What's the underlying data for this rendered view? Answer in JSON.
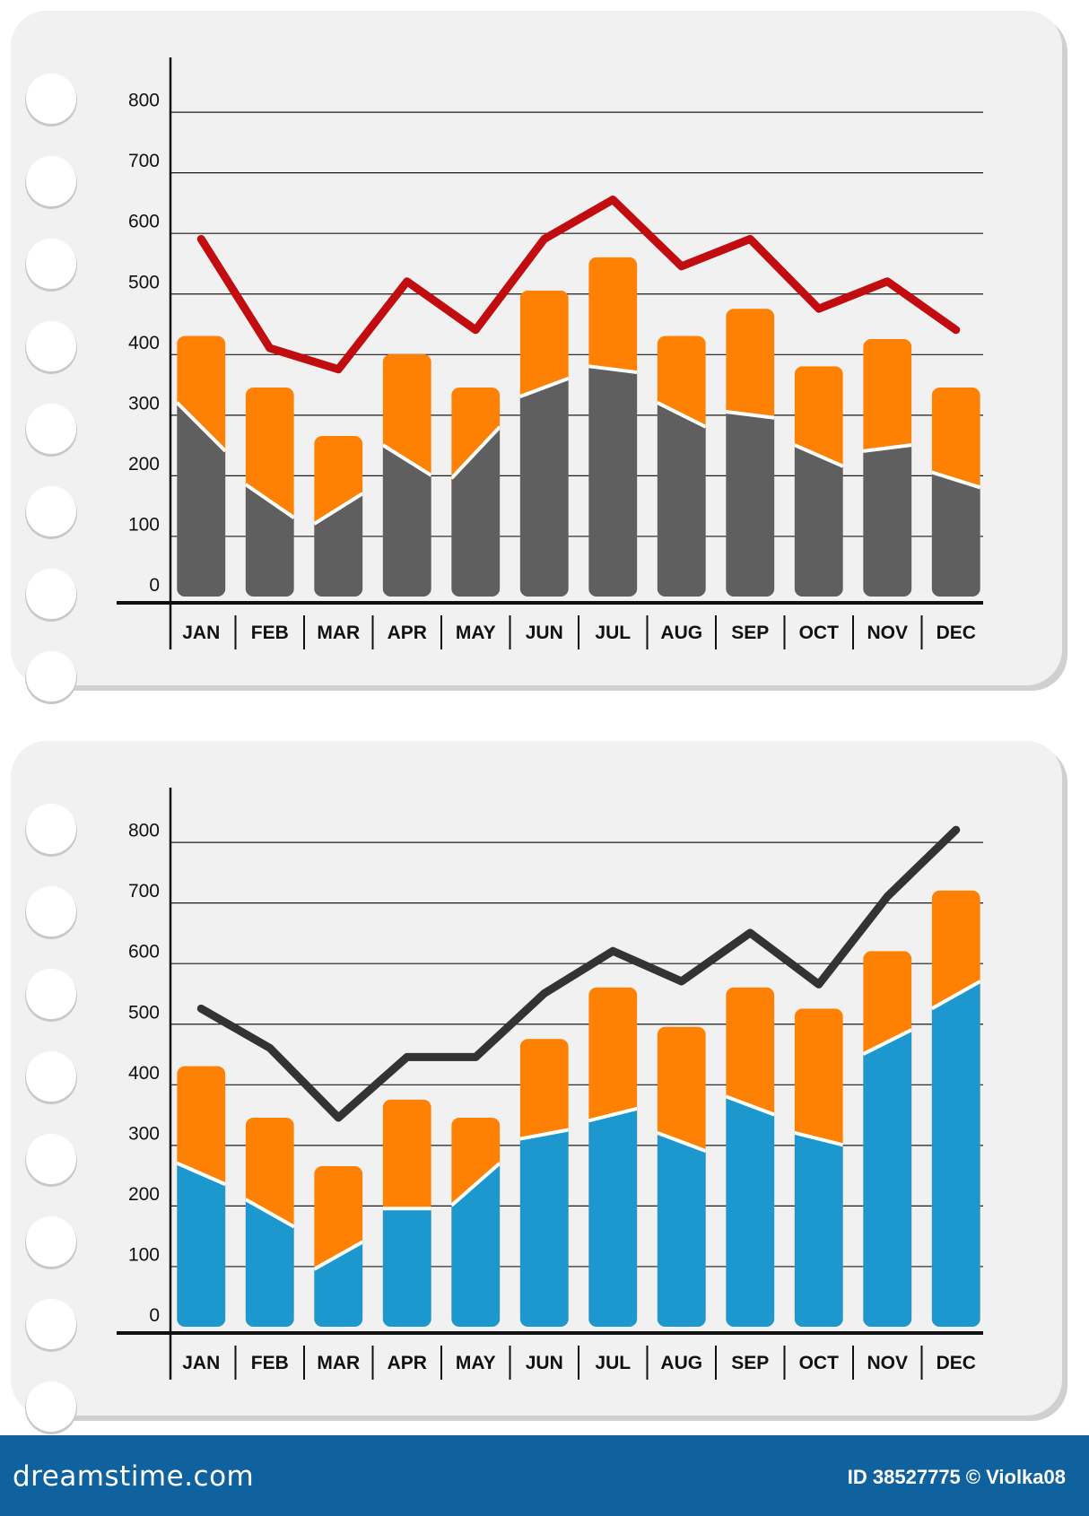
{
  "colors": {
    "page": "#ffffff",
    "card": "#f1f1f1",
    "card_shadow": "#d0d0d0",
    "ring": "#ffffff",
    "grid": "#1a1a1a",
    "axis": "#111111",
    "bar_top": "#ff8103",
    "bar_separator": "#ffffff",
    "footer": "#10629e"
  },
  "chart_data": [
    {
      "type": "bar",
      "title": "",
      "xlabel": "",
      "ylabel": "",
      "stacked": true,
      "categories": [
        "JAN",
        "FEB",
        "MAR",
        "APR",
        "MAY",
        "JUN",
        "JUL",
        "AUG",
        "SEP",
        "OCT",
        "NOV",
        "DEC"
      ],
      "ylim": [
        0,
        800
      ],
      "yticks": [
        0,
        100,
        200,
        300,
        400,
        500,
        600,
        700,
        800
      ],
      "grid": true,
      "legend": "none",
      "bar_totals": [
        430,
        345,
        265,
        400,
        345,
        505,
        560,
        430,
        475,
        380,
        425,
        345
      ],
      "lower_profile": [
        [
          320,
          240
        ],
        [
          185,
          130
        ],
        [
          120,
          170
        ],
        [
          250,
          200
        ],
        [
          195,
          280
        ],
        [
          330,
          360
        ],
        [
          380,
          370
        ],
        [
          320,
          280
        ],
        [
          305,
          295
        ],
        [
          250,
          215
        ],
        [
          240,
          250
        ],
        [
          205,
          180
        ]
      ],
      "lower_color": "#5f5f5f",
      "line": {
        "color": "#c10d0f",
        "values": [
          590,
          410,
          375,
          520,
          440,
          590,
          655,
          545,
          590,
          475,
          520,
          440
        ]
      }
    },
    {
      "type": "bar",
      "title": "",
      "xlabel": "",
      "ylabel": "",
      "stacked": true,
      "categories": [
        "JAN",
        "FEB",
        "MAR",
        "APR",
        "MAY",
        "JUN",
        "JUL",
        "AUG",
        "SEP",
        "OCT",
        "NOV",
        "DEC"
      ],
      "ylim": [
        0,
        800
      ],
      "yticks": [
        0,
        100,
        200,
        300,
        400,
        500,
        600,
        700,
        800
      ],
      "grid": true,
      "legend": "none",
      "bar_totals": [
        430,
        345,
        265,
        375,
        345,
        475,
        560,
        495,
        560,
        525,
        620,
        720
      ],
      "lower_profile": [
        [
          270,
          235
        ],
        [
          210,
          165
        ],
        [
          95,
          140
        ],
        [
          195,
          195
        ],
        [
          200,
          270
        ],
        [
          310,
          325
        ],
        [
          340,
          360
        ],
        [
          320,
          290
        ],
        [
          380,
          350
        ],
        [
          320,
          300
        ],
        [
          450,
          490
        ],
        [
          525,
          570
        ]
      ],
      "lower_color": "#1c98cf",
      "line": {
        "color": "#333333",
        "values": [
          525,
          460,
          345,
          445,
          445,
          550,
          620,
          570,
          650,
          565,
          710,
          820
        ]
      }
    }
  ],
  "watermark": {
    "logo": "dreamstime.com",
    "id_text": "ID 38527775",
    "copyright": "© Violka08"
  }
}
